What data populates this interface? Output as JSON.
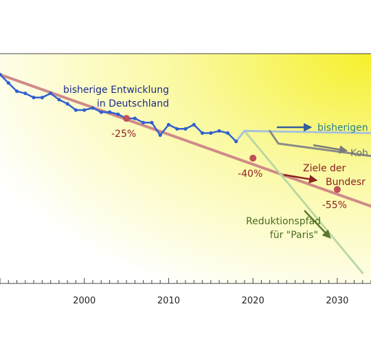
{
  "chart_data": {
    "type": "line",
    "title": "",
    "xlabel": "",
    "ylabel": "",
    "xlim": [
      1990,
      2034
    ],
    "ylim": [
      0,
      110
    ],
    "x_ticks": [
      "2000",
      "2010",
      "2020",
      "2030"
    ],
    "colors": {
      "history": "#2f5fcf",
      "targets": "#d08a88",
      "current_trend": "#a8c2dc",
      "coal_exit": "#8a8a8a",
      "paris": "#bcd7a4",
      "label_history": "#1c2a8c",
      "label_trend": "#2a7f8f",
      "label_targets": "#8b1e1e",
      "label_paris": "#4a6b1f",
      "target_points": "#c0505a"
    },
    "series": [
      {
        "key": "history",
        "name": "bisherige Entwicklung in Deutschland",
        "x": [
          1990,
          1991,
          1992,
          1993,
          1994,
          1995,
          1996,
          1997,
          1998,
          1999,
          2000,
          2001,
          2002,
          2003,
          2004,
          2005,
          2006,
          2007,
          2008,
          2009,
          2010,
          2011,
          2012,
          2013,
          2014,
          2015,
          2016,
          2017,
          2018
        ],
        "y": [
          100,
          96,
          92,
          91,
          89,
          89,
          91,
          88,
          86,
          83,
          83,
          84,
          82,
          82,
          81,
          79,
          79,
          77,
          77,
          71,
          76,
          74,
          74,
          76,
          72,
          72,
          73,
          72,
          68
        ]
      },
      {
        "key": "targets",
        "name": "Ziele der Bundesregierung",
        "x": [
          1990,
          2034
        ],
        "y": [
          100,
          37
        ]
      },
      {
        "key": "current_trend",
        "name": "bisherigen Trend",
        "x": [
          2018,
          2019,
          2034
        ],
        "y": [
          68,
          73,
          72
        ]
      },
      {
        "key": "coal_exit",
        "name": "Kohle",
        "x": [
          2022,
          2023,
          2034
        ],
        "y": [
          73,
          67,
          61
        ]
      },
      {
        "key": "paris",
        "name": "Reduktionspfad für \"Paris\"",
        "x": [
          2019,
          2033
        ],
        "y": [
          73,
          5
        ]
      }
    ],
    "target_points": [
      {
        "x": 2005,
        "y": 79,
        "label": "-25%"
      },
      {
        "x": 2020,
        "y": 60,
        "label": "-40%"
      },
      {
        "x": 2030,
        "y": 45,
        "label": "-55%"
      }
    ],
    "annotations": {
      "history_line1": "bisherige Entwicklung",
      "history_line2": "in Deutschland",
      "trend": "bisherigen",
      "coal": "Koh",
      "targets_line1": "Ziele der",
      "targets_line2": "Bundesr",
      "paris_line1": "Reduktionspfad",
      "paris_line2": "für \"Paris\""
    }
  }
}
